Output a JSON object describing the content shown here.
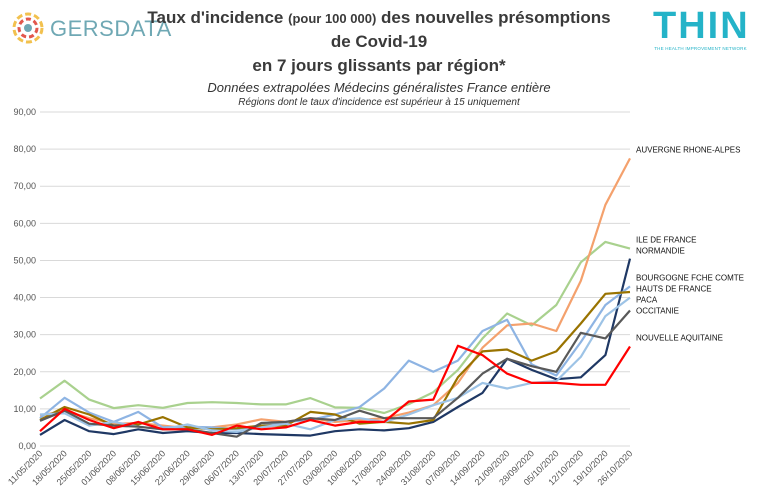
{
  "header": {
    "brand_left": "GERSDATA",
    "brand_right": "THIN",
    "brand_right_tagline": "THE HEALTH IMPROVEMENT NETWORK",
    "title_main": "Taux d'incidence",
    "title_small": "(pour 100 000)",
    "title_rest": "des nouvelles présomptions",
    "title_line2": "de Covid-19",
    "title_line3": "en 7 jours glissants par région*",
    "subtitle": "Données extrapolées Médecins généralistes France entière",
    "note": "Régions dont le taux d'incidence est supérieur à 15 uniquement"
  },
  "colors": {
    "gersdata_blue": "#6fa8b4",
    "thin_cyan": "#24b3c8",
    "grid": "#d9d9d9"
  },
  "chart_data": {
    "type": "line",
    "ylim": [
      0,
      90
    ],
    "y_ticks": [
      "0,00",
      "10,00",
      "20,00",
      "30,00",
      "40,00",
      "50,00",
      "60,00",
      "70,00",
      "80,00",
      "90,00"
    ],
    "x_ticks": [
      "11/05/2020",
      "18/05/2020",
      "25/05/2020",
      "01/06/2020",
      "08/06/2020",
      "15/06/2020",
      "22/06/2020",
      "29/06/2020",
      "06/07/2020",
      "13/07/2020",
      "20/07/2020",
      "27/07/2020",
      "03/08/2020",
      "10/08/2020",
      "17/08/2020",
      "24/08/2020",
      "31/08/2020",
      "07/09/2020",
      "14/09/2020",
      "21/09/2020",
      "28/09/2020",
      "05/10/2020",
      "12/10/2020",
      "19/10/2020",
      "26/10/2020"
    ],
    "grid": true,
    "series": [
      {
        "name": "ILE DE FRANCE",
        "color": "#a9d18e",
        "values": [
          12.8,
          17.6,
          12.5,
          10.2,
          11,
          10.3,
          11.6,
          11.8,
          11.6,
          11.2,
          11.2,
          12.9,
          10.4,
          10.3,
          8.9,
          11.3,
          14.5,
          20.5,
          29,
          35.7,
          32.5,
          38,
          49.5,
          55,
          53.2
        ]
      },
      {
        "name": "AUVERGNE RHONE-ALPES",
        "color": "#f4a16d",
        "values": [
          8.2,
          9.5,
          7.5,
          6,
          6.2,
          5.5,
          4.8,
          5,
          5.8,
          7.2,
          6.5,
          7.5,
          6.5,
          7,
          7.5,
          9,
          11,
          17,
          26.5,
          32.5,
          33,
          31,
          44.5,
          65,
          77.5
        ]
      },
      {
        "name": "NORMANDIE",
        "color": "#1f3864",
        "values": [
          3,
          7,
          4,
          3.2,
          4.5,
          3.5,
          4,
          3.5,
          3.5,
          3.2,
          3,
          2.8,
          4,
          4.5,
          4.2,
          4.8,
          6.5,
          10.5,
          14.3,
          23.5,
          20.5,
          18,
          18.5,
          24.5,
          50.5
        ]
      },
      {
        "name": "BOURGOGNE FCHE COMTE",
        "color": "#8eb4e3",
        "values": [
          7.5,
          13,
          9,
          6.5,
          9.2,
          5,
          5.2,
          5,
          4.5,
          5.5,
          6.5,
          7,
          8.5,
          10.5,
          15.5,
          23,
          20,
          23,
          31,
          34,
          22,
          19,
          28,
          38,
          43
        ]
      },
      {
        "name": "HAUTS DE FRANCE",
        "color": "#997300",
        "values": [
          7,
          10.5,
          8.5,
          5.5,
          5.8,
          7.8,
          5,
          4.5,
          4.8,
          5.5,
          5.5,
          9.2,
          8.5,
          6,
          6.5,
          6,
          7,
          18.5,
          25.5,
          26,
          23,
          25.5,
          33,
          41,
          41.5
        ]
      },
      {
        "name": "PACA",
        "color": "#9dc3e6",
        "values": [
          8.5,
          8.8,
          5.5,
          6.5,
          5.2,
          4.5,
          5.8,
          4.2,
          3.8,
          5,
          6,
          4.5,
          7,
          7.5,
          6.5,
          8.5,
          11,
          13,
          17,
          15.5,
          17,
          17.5,
          24,
          35,
          40
        ]
      },
      {
        "name": "OCCITANIE",
        "color": "#595959",
        "values": [
          6.8,
          9.5,
          6,
          5.5,
          5.2,
          4.5,
          4.5,
          3.5,
          2.5,
          6.2,
          6.5,
          7.5,
          7,
          9.5,
          7.5,
          7.5,
          7.5,
          13,
          19.5,
          23.5,
          21.5,
          20,
          30.5,
          29,
          36.5
        ]
      },
      {
        "name": "NOUVELLE AQUITAINE",
        "color": "#ff0000",
        "values": [
          4,
          10,
          7,
          4.8,
          6.5,
          4.5,
          4.5,
          3,
          5.5,
          4.5,
          5,
          7,
          5.5,
          6.5,
          6.5,
          12,
          12.5,
          27,
          24.5,
          19.5,
          17,
          17,
          16.5,
          16.5,
          26.8
        ]
      }
    ]
  }
}
